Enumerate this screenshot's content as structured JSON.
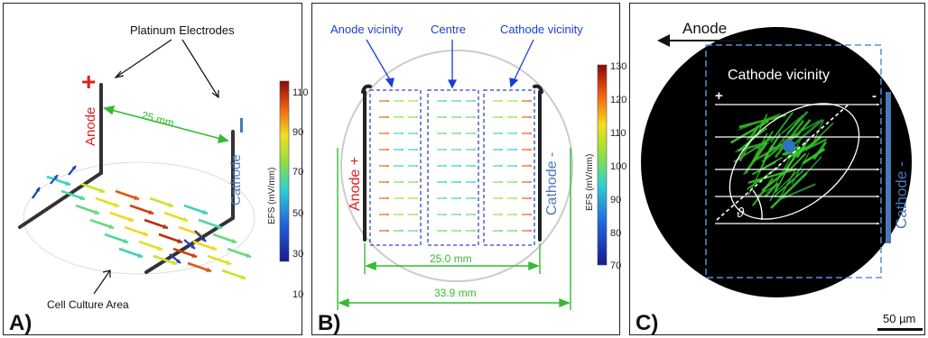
{
  "panelA": {
    "label": "A)",
    "electrodes_label": "Platinum Electrodes",
    "anode_label": "Anode",
    "anode_sign": "+",
    "cathode_label": "Cathode",
    "cathode_sign": "-",
    "distance_label": "25 mm",
    "culture_label": "Cell Culture Area",
    "colorbar_title": "EFS (mV/mm)",
    "colorbar_ticks": [
      "110",
      "90",
      "70",
      "50",
      "30",
      "10"
    ]
  },
  "panelB": {
    "label": "B)",
    "region_labels": [
      "Anode vicinity",
      "Centre",
      "Cathode vicinity"
    ],
    "anode_label": "Anode +",
    "cathode_label": "Cathode -",
    "inner_distance": "25.0 mm",
    "outer_distance": "33.9 mm",
    "colorbar_title": "EFS (mV/mm)",
    "colorbar_ticks": [
      "130",
      "120",
      "110",
      "100",
      "90",
      "80",
      "70"
    ]
  },
  "panelC": {
    "label": "C)",
    "anode_label": "Anode",
    "region_label": "Cathode vicinity",
    "plus_sign": "+",
    "minus_sign": "-",
    "cathode_label": "Cathode -",
    "angle_symbol": "ϑ",
    "scale_label": "50 µm"
  },
  "colors": {
    "label_blue": "#1a3fd6",
    "anode_red": "#e02020",
    "cathode_blue": "#4a78b8",
    "dimension_green": "#33bb33"
  }
}
